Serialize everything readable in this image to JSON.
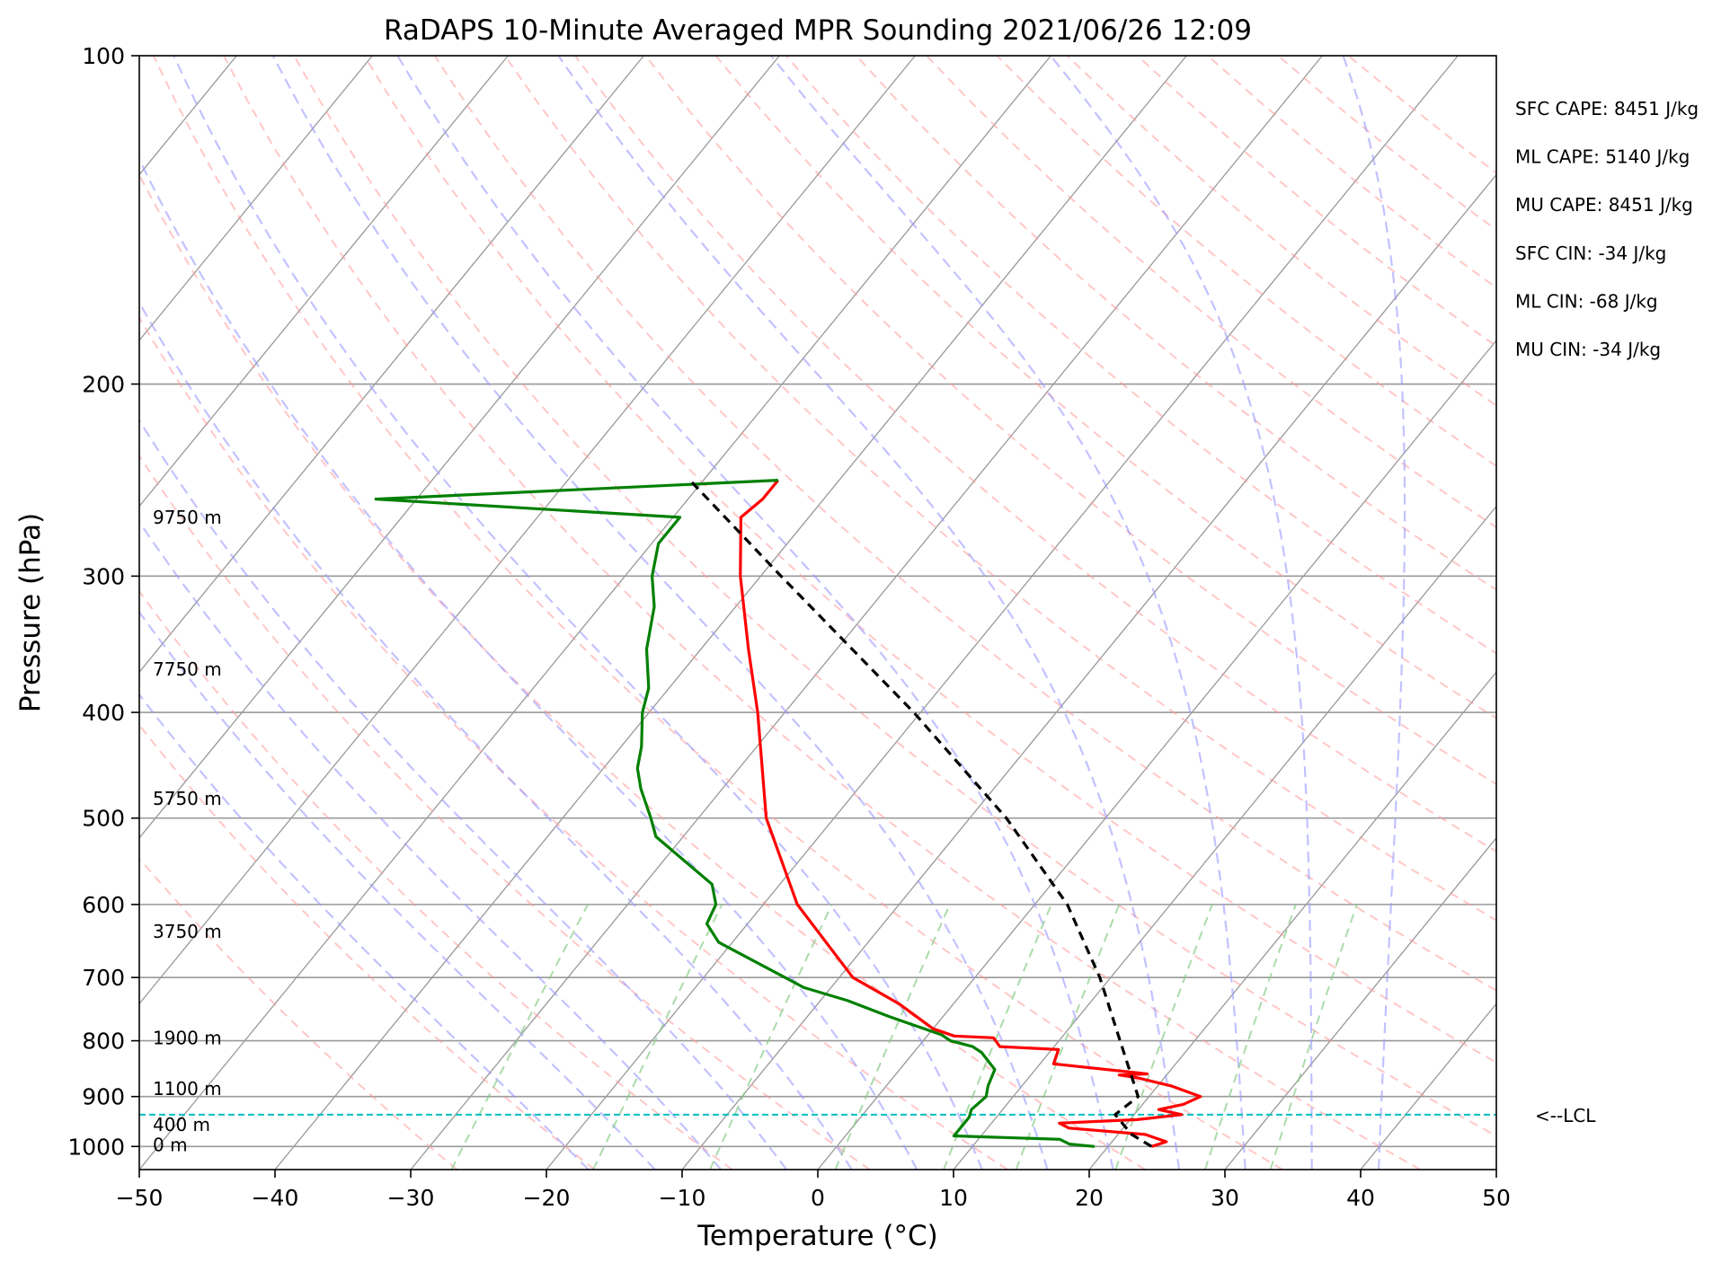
{
  "chart_data": {
    "type": "skew-t sounding",
    "title": "RaDAPS 10-Minute Averaged MPR Sounding 2021/06/26 12:09",
    "xlabel": "Temperature (°C)",
    "ylabel": "Pressure (hPa)",
    "xlim": [
      -50,
      50
    ],
    "ylim": [
      1050,
      100
    ],
    "y_scale": "log",
    "x_ticks": [
      "−50",
      "−40",
      "−30",
      "−20",
      "−10",
      "0",
      "10",
      "20",
      "30",
      "40",
      "50"
    ],
    "y_ticks": [
      "100",
      "200",
      "300",
      "400",
      "500",
      "600",
      "700",
      "800",
      "900",
      "1000"
    ],
    "grid": true,
    "colors": {
      "temperature": "#ff0000",
      "dewpoint": "#008000",
      "parcel": "#000000",
      "lcl": "#00bfbf",
      "dry_adiabats": "#ff9999",
      "moist_adiabats": "#9999ff",
      "mixing_ratio": "#88cc88",
      "isotherms": "#999999"
    },
    "series": [
      {
        "kind": "temperature",
        "points": [
          [
            1000,
            23.2
          ],
          [
            990,
            24
          ],
          [
            975,
            22
          ],
          [
            962,
            16
          ],
          [
            952,
            15
          ],
          [
            945,
            20.5
          ],
          [
            935,
            23.5
          ],
          [
            925,
            21.5
          ],
          [
            915,
            23
          ],
          [
            900,
            23.8
          ],
          [
            880,
            21
          ],
          [
            865,
            18
          ],
          [
            860,
            16.5
          ],
          [
            858,
            18.5
          ],
          [
            840,
            11
          ],
          [
            815,
            10.5
          ],
          [
            810,
            6
          ],
          [
            795,
            5
          ],
          [
            792,
            2
          ],
          [
            780,
            0
          ],
          [
            740,
            -4
          ],
          [
            700,
            -9
          ],
          [
            600,
            -17.5
          ],
          [
            500,
            -25
          ],
          [
            400,
            -32
          ],
          [
            350,
            -36.5
          ],
          [
            300,
            -41.5
          ],
          [
            265,
            -45
          ],
          [
            255,
            -44.5
          ],
          [
            245,
            -44.5
          ]
        ]
      },
      {
        "kind": "dewpoint",
        "points": [
          [
            1000,
            19
          ],
          [
            995,
            17
          ],
          [
            985,
            16
          ],
          [
            978,
            8
          ],
          [
            955,
            8
          ],
          [
            940,
            8
          ],
          [
            925,
            7.7
          ],
          [
            900,
            8
          ],
          [
            880,
            7.5
          ],
          [
            850,
            7
          ],
          [
            820,
            5
          ],
          [
            810,
            4
          ],
          [
            800,
            2
          ],
          [
            790,
            1
          ],
          [
            760,
            -4
          ],
          [
            735,
            -8
          ],
          [
            715,
            -12
          ],
          [
            700,
            -14
          ],
          [
            650,
            -21
          ],
          [
            625,
            -23
          ],
          [
            600,
            -23.5
          ],
          [
            575,
            -25
          ],
          [
            520,
            -32
          ],
          [
            500,
            -33.5
          ],
          [
            470,
            -36
          ],
          [
            450,
            -37.5
          ],
          [
            430,
            -38.5
          ],
          [
            400,
            -40.5
          ],
          [
            380,
            -41.5
          ],
          [
            350,
            -44
          ],
          [
            320,
            -46
          ],
          [
            300,
            -48
          ],
          [
            280,
            -49.5
          ],
          [
            265,
            -49.5
          ],
          [
            255,
            -73
          ],
          [
            245,
            -44.5
          ]
        ]
      },
      {
        "kind": "parcel",
        "points": [
          [
            1000,
            23.2
          ],
          [
            975,
            21
          ],
          [
            935,
            18.6
          ],
          [
            900,
            19.2
          ],
          [
            800,
            14.5
          ],
          [
            700,
            9.2
          ],
          [
            600,
            2.4
          ],
          [
            500,
            -7.3
          ],
          [
            400,
            -20.5
          ],
          [
            300,
            -38.5
          ],
          [
            245,
            -51
          ]
        ]
      }
    ],
    "lcl_pressure": 935,
    "lcl_label": "<--LCL",
    "height_labels": [
      {
        "p": 265,
        "text": "9750 m"
      },
      {
        "p": 365,
        "text": "7750 m"
      },
      {
        "p": 480,
        "text": "5750 m"
      },
      {
        "p": 635,
        "text": "3750 m"
      },
      {
        "p": 795,
        "text": "1900 m"
      },
      {
        "p": 885,
        "text": "1100 m"
      },
      {
        "p": 955,
        "text": "400 m"
      },
      {
        "p": 997,
        "text": "0 m"
      }
    ],
    "indices": [
      "SFC CAPE: 8451 J/kg",
      "ML CAPE: 5140 J/kg",
      "MU CAPE: 8451 J/kg",
      "SFC CIN: -34 J/kg",
      "ML CIN: -68 J/kg",
      "MU CIN: -34 J/kg"
    ]
  }
}
